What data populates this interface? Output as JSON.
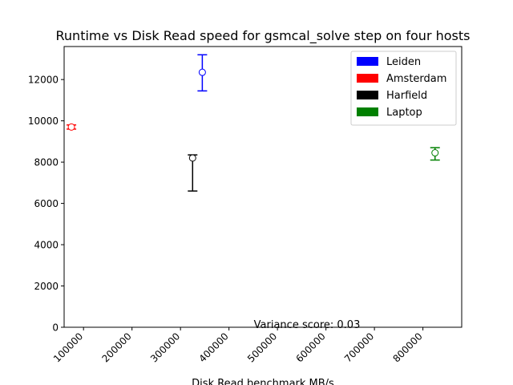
{
  "chart_data": {
    "type": "scatter",
    "title": "Runtime vs Disk Read speed for gsmcal_solve step on four hosts",
    "xlabel": "Disk Read benchmark MB/s",
    "ylabel": "",
    "xlim": [
      60000,
      880000
    ],
    "ylim": [
      0,
      13600
    ],
    "xticks": [
      100000,
      200000,
      300000,
      400000,
      500000,
      600000,
      700000,
      800000
    ],
    "xtick_labels": [
      "100000",
      "200000",
      "300000",
      "400000",
      "500000",
      "600000",
      "700000",
      "800000"
    ],
    "yticks": [
      0,
      2000,
      4000,
      6000,
      8000,
      10000,
      12000
    ],
    "ytick_labels": [
      "0",
      "2000",
      "4000",
      "6000",
      "8000",
      "10000",
      "12000"
    ],
    "xtick_rotation": 45,
    "grid": false,
    "legend_position": "top-right",
    "annotation": "Variance score: 0.03",
    "series": [
      {
        "name": "Leiden",
        "color": "#0000ff",
        "x": 345000,
        "y": 12350,
        "y_low": 11450,
        "y_high": 13200
      },
      {
        "name": "Amsterdam",
        "color": "#ff0000",
        "x": 75000,
        "y": 9700,
        "y_low": 9600,
        "y_high": 9800
      },
      {
        "name": "Harfield",
        "color": "#000000",
        "x": 325000,
        "y": 8200,
        "y_low": 6600,
        "y_high": 8350
      },
      {
        "name": "Laptop",
        "color": "#008000",
        "x": 825000,
        "y": 8450,
        "y_low": 8100,
        "y_high": 8700
      }
    ]
  }
}
